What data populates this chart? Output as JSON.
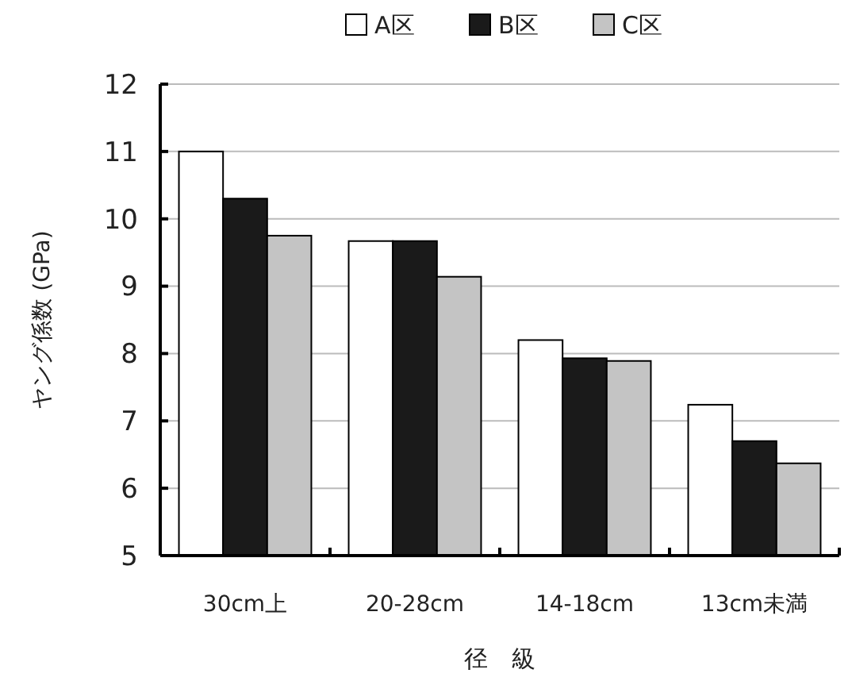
{
  "chart_data": {
    "type": "bar",
    "xlabel": "径　級",
    "ylabel": "ヤング係数 (GPa)",
    "categories": [
      "30cm上",
      "20-28cm",
      "14-18cm",
      "13cm未満"
    ],
    "series": [
      {
        "name": "A区",
        "color": "#ffffff",
        "values": [
          11.0,
          9.67,
          8.2,
          7.24
        ]
      },
      {
        "name": "B区",
        "color": "#1a1a1a",
        "values": [
          10.3,
          9.67,
          7.93,
          6.7
        ]
      },
      {
        "name": "C区",
        "color": "#c4c4c4",
        "values": [
          9.75,
          9.14,
          7.89,
          6.37
        ]
      }
    ],
    "ylim": [
      5,
      12
    ],
    "yticks": [
      5,
      6,
      7,
      8,
      9,
      10,
      11,
      12
    ],
    "grid": "y",
    "legend": "top"
  }
}
